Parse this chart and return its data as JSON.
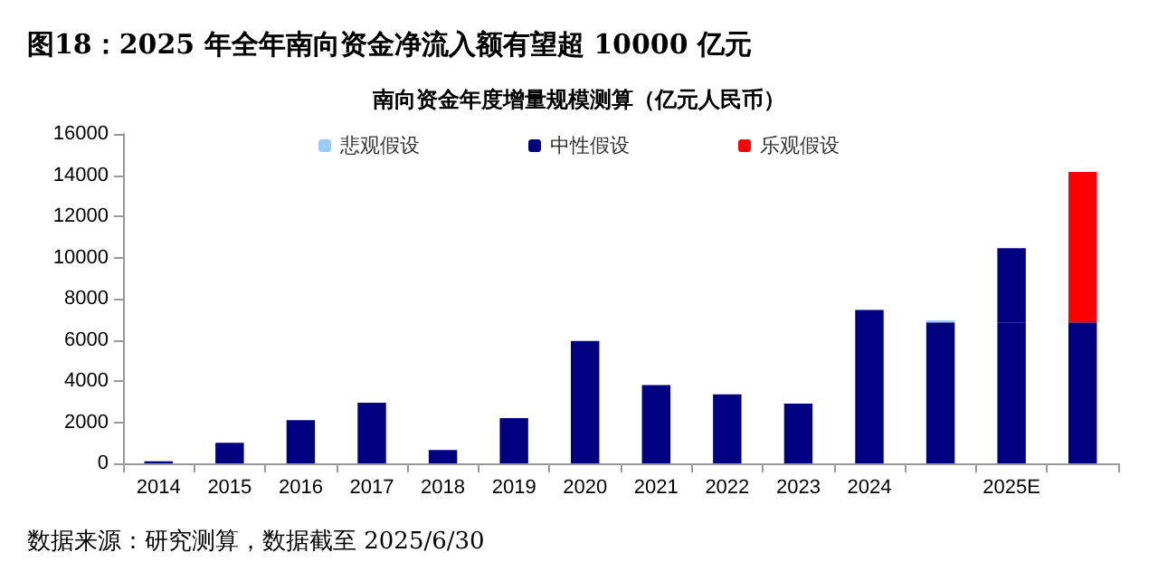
{
  "chart_data": {
    "type": "bar",
    "title": "图18：2025 年全年南向资金净流入额有望超 10000 亿元",
    "subtitle": "南向资金年度增量规模测算（亿元人民币）",
    "annotations": [
      "数据来源：研究测算，数据截至 2025/6/30"
    ],
    "categories": [
      "2014",
      "2015",
      "2016",
      "2017",
      "2018",
      "2019",
      "2020",
      "2021",
      "2022",
      "2023",
      "2024",
      null,
      "2025E",
      null
    ],
    "stacked": true,
    "series": [
      {
        "color": "#000080",
        "values": [
          100,
          1000,
          2100,
          2950,
          650,
          2200,
          5950,
          3800,
          3350,
          2900,
          7450,
          6850,
          6850,
          6850
        ]
      },
      {
        "name": "悲观假设",
        "color": "#99ccff",
        "values": [
          null,
          null,
          null,
          null,
          null,
          null,
          null,
          null,
          null,
          null,
          null,
          100,
          null,
          null
        ]
      },
      {
        "name": "中性假设",
        "color": "#000080",
        "values": [
          null,
          null,
          null,
          null,
          null,
          null,
          null,
          null,
          null,
          null,
          null,
          null,
          3600,
          null
        ]
      },
      {
        "name": "乐观假设",
        "color": "#ff0000",
        "values": [
          null,
          null,
          null,
          null,
          null,
          null,
          null,
          null,
          null,
          null,
          null,
          null,
          null,
          7300
        ]
      }
    ],
    "ylim": [
      0,
      16000
    ],
    "yticks": [
      0,
      2000,
      4000,
      6000,
      8000,
      10000,
      12000,
      14000,
      16000
    ],
    "grid": false,
    "legend": "top"
  }
}
